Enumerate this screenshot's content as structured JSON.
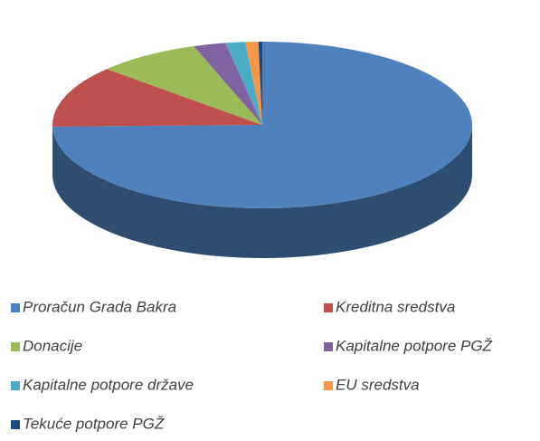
{
  "chart_data": {
    "type": "pie3d",
    "categories": [
      "Proračun Grada Bakra",
      "Kreditna sredstva",
      "Donacije",
      "Kapitalne potpore PGŽ",
      "Kapitalne potpore države",
      "EU sredstva",
      "Tekuće potpore PGŽ"
    ],
    "values": [
      74.7,
      12,
      8,
      2.5,
      1.5,
      1,
      0.3
    ],
    "colors": [
      "#4f81bd",
      "#c0504d",
      "#9bbb59",
      "#8064a2",
      "#4bacc6",
      "#f79646",
      "#1f497d"
    ],
    "legend": "bottom"
  }
}
